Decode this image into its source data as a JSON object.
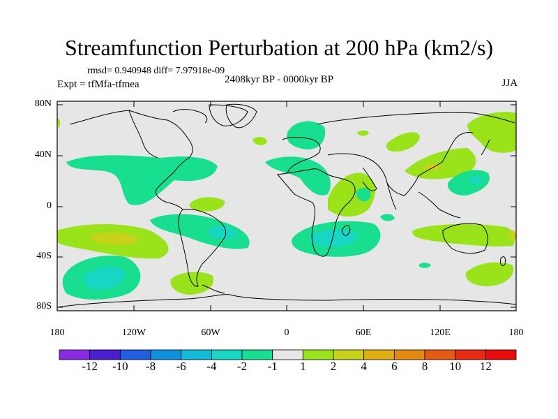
{
  "title": "Streamfunction Perturbation at 200 hPa (km2/s)",
  "stats_line": "rmsd= 0.940948 diff= 7.97918e-09",
  "period_line": "2408kyr BP - 0000kyr BP",
  "expt_line": "Expt = tfMfa-tfmea",
  "season": "JJA",
  "lat_labels": [
    "80N",
    "40N",
    "0",
    "40S",
    "80S"
  ],
  "lon_labels": [
    "180",
    "120W",
    "60W",
    "0",
    "60E",
    "120E",
    "180"
  ],
  "colorbar": {
    "labels": [
      "-12",
      "-10",
      "-8",
      "-6",
      "-4",
      "-2",
      "-1",
      "1",
      "2",
      "4",
      "6",
      "8",
      "10",
      "12"
    ],
    "colors": [
      "#8a2be2",
      "#4b1fd1",
      "#1f5fe0",
      "#0e8fe0",
      "#10bcd8",
      "#17d6c4",
      "#18df90",
      "#e6e6e6",
      "#9ae21a",
      "#c8d21a",
      "#e0b010",
      "#e48a10",
      "#e45a12",
      "#e62a14",
      "#e80c0c"
    ]
  },
  "colors": {
    "background_field": "#e6e6e6",
    "coast": "#000000"
  }
}
